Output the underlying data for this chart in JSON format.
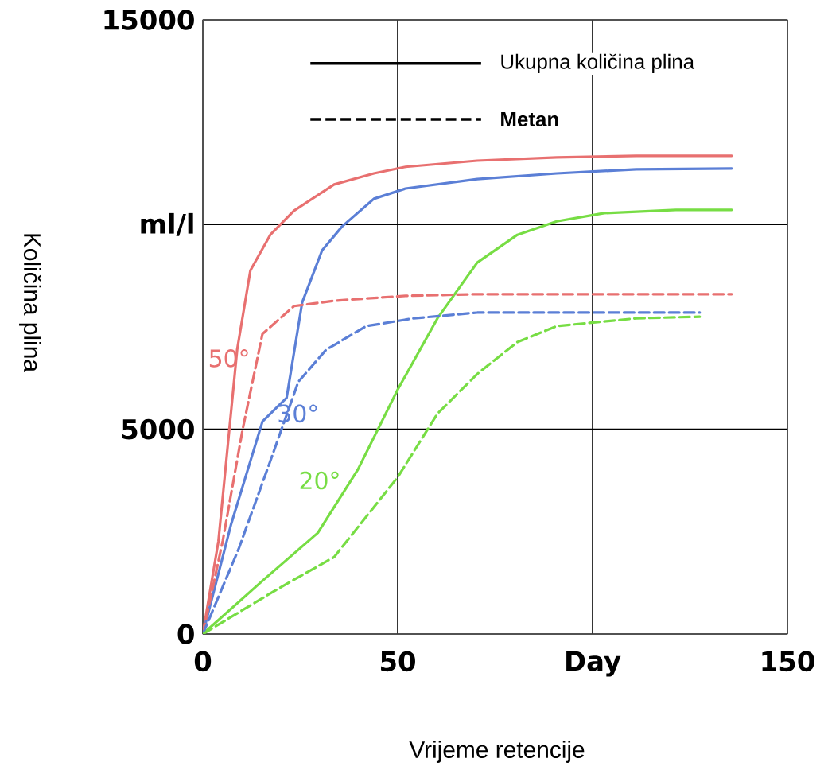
{
  "chart_data": {
    "type": "line",
    "xlabel": "Vrijeme retencije",
    "ylabel": "Količina plina",
    "xlim": [
      0,
      150
    ],
    "xticks": [
      0,
      50,
      {
        "value": 100,
        "label": "Day"
      },
      150
    ],
    "ylim": [
      0,
      15000
    ],
    "yticks": [
      0,
      5000,
      {
        "value": 10000,
        "label": "ml/l"
      },
      15000
    ],
    "grid": true,
    "legend": false,
    "marker": "none",
    "series": [
      {
        "name": "50°",
        "color": "#e87070",
        "line_style": "solid",
        "x": [
          0,
          4.0,
          8.8,
          12.2,
          17.3,
          23.4,
          33.7,
          43.9,
          52.0,
          70.4,
          90.8,
          111.2,
          135.7
        ],
        "values": [
          0,
          2270,
          6940,
          8880,
          9750,
          10340,
          10980,
          11250,
          11410,
          11560,
          11640,
          11680,
          11680
        ]
      },
      {
        "name": "30°",
        "color": "#5b7fd6",
        "line_style": "solid",
        "x": [
          0,
          7.2,
          15.3,
          21.5,
          25.5,
          30.6,
          35.7,
          43.9,
          52.0,
          70.4,
          90.8,
          111.2,
          135.7
        ],
        "values": [
          0,
          2660,
          5190,
          5770,
          8100,
          9370,
          9950,
          10630,
          10880,
          11110,
          11250,
          11350,
          11370
        ]
      },
      {
        "name": "20°",
        "color": "#77dd44",
        "line_style": "solid",
        "x": [
          0,
          15.3,
          29.5,
          39.8,
          50.0,
          60.2,
          70.4,
          80.7,
          90.8,
          103.0,
          121.4,
          135.7
        ],
        "values": [
          0,
          1300,
          2470,
          4020,
          5970,
          7710,
          9070,
          9750,
          10080,
          10280,
          10360,
          10360
        ]
      },
      {
        "color": "#e87070",
        "line_style": "dashed",
        "x": [
          0,
          5.1,
          10.2,
          15.3,
          23.4,
          33.7,
          52.0,
          70.4,
          135.7
        ],
        "values": [
          0,
          2270,
          4990,
          7330,
          8010,
          8140,
          8260,
          8300,
          8300
        ]
      },
      {
        "color": "#5b7fd6",
        "line_style": "dashed",
        "x": [
          0,
          9.2,
          17.3,
          24.5,
          31.6,
          41.9,
          54.1,
          70.4,
          127.5
        ],
        "values": [
          0,
          2080,
          4220,
          6160,
          6940,
          7520,
          7710,
          7850,
          7850
        ]
      },
      {
        "color": "#77dd44",
        "line_style": "dashed",
        "x": [
          0,
          19.4,
          33.7,
          50.0,
          60.2,
          70.4,
          80.7,
          90.8,
          111.2,
          127.5
        ],
        "values": [
          0,
          1110,
          1880,
          3830,
          5380,
          6350,
          7130,
          7520,
          7710,
          7750
        ]
      }
    ],
    "annotations": [
      "Ukupna količina plina",
      "Metan"
    ]
  }
}
